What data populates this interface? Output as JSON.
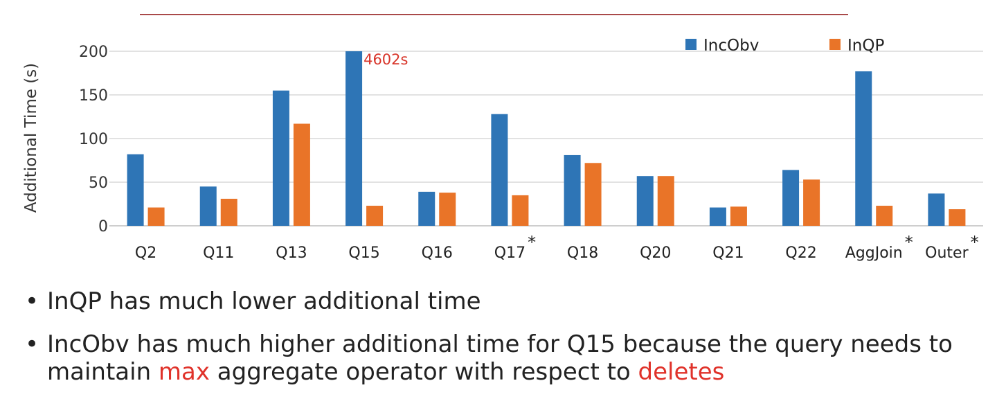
{
  "colors": {
    "incobv": "#2e75b6",
    "inqp": "#e97428",
    "annotation": "#d8352a",
    "top_rule": "#a94a4a"
  },
  "chart_data": {
    "type": "bar",
    "ylabel": "Additional Time (s)",
    "ylim": [
      0,
      200
    ],
    "yticks": [
      0,
      50,
      100,
      150,
      200
    ],
    "grid": true,
    "legend": "top-right",
    "categories": [
      "Q2",
      "Q11",
      "Q13",
      "Q15",
      "Q16",
      "Q17",
      "Q18",
      "Q20",
      "Q21",
      "Q22",
      "AggJoin",
      "Outer"
    ],
    "category_marks": [
      "",
      "",
      "",
      "",
      "",
      "*",
      "",
      "",
      "",
      "",
      "*",
      "*"
    ],
    "series": [
      {
        "name": "IncObv",
        "values": [
          82,
          45,
          155,
          200,
          39,
          128,
          81,
          57,
          21,
          64,
          177,
          37
        ]
      },
      {
        "name": "InQP",
        "values": [
          21,
          31,
          117,
          23,
          38,
          35,
          72,
          57,
          22,
          53,
          23,
          19
        ]
      }
    ],
    "annotations": [
      {
        "category": "Q15",
        "series": "IncObv",
        "text": "4602s"
      }
    ]
  },
  "bullets": [
    {
      "parts": [
        {
          "text": "InQP has much lower additional time",
          "highlight": false
        }
      ]
    },
    {
      "parts": [
        {
          "text": "IncObv has much higher additional time for Q15 because the query needs to maintain ",
          "highlight": false
        },
        {
          "text": "max",
          "highlight": true
        },
        {
          "text": " aggregate operator with respect to ",
          "highlight": false
        },
        {
          "text": "deletes",
          "highlight": true
        }
      ]
    }
  ],
  "bullet_symbol": "•"
}
